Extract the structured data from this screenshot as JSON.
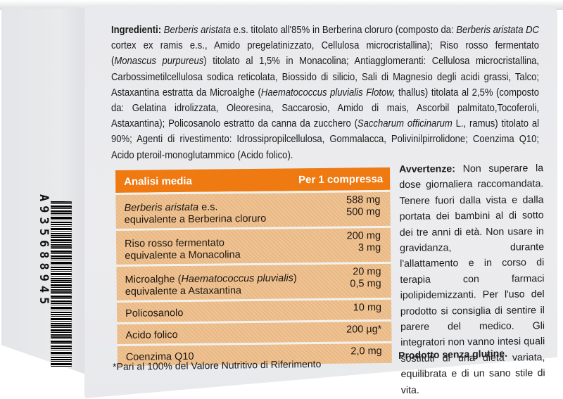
{
  "product_label": {
    "ingredients": {
      "heading": "Ingredienti:",
      "segments": [
        {
          "text": " ",
          "style": "normal"
        },
        {
          "text": "Berberis aristata",
          "style": "italic"
        },
        {
          "text": " e.s. titolato all'85% in Berberina cloruro (composto da: ",
          "style": "normal"
        },
        {
          "text": "Berberis aristata DC",
          "style": "italic"
        },
        {
          "text": " cortex ex ramis e.s., Amido pregelatinizzato, Cellulosa microcristallina); Riso rosso fermentato (",
          "style": "normal"
        },
        {
          "text": "Monascus purpureus",
          "style": "italic"
        },
        {
          "text": ") titolato al 1,5% in Monacolina; Antiagglomeranti: Cellulosa microcristallina, Carbossimetilcellulosa sodica reticolata, Biossido di silicio, Sali di Magnesio degli acidi grassi, Talco; Astaxantina estratta da Microalghe (",
          "style": "normal"
        },
        {
          "text": "Haematococcus pluvialis Flotow,",
          "style": "italic"
        },
        {
          "text": " thallus) titolata al 2,5% (composto da: Gelatina idrolizzata, Oleoresina, Saccarosio, Amido di mais, Ascorbil palmitato,Tocoferoli, Astaxantina); Policosanolo estratto da canna da zucchero (",
          "style": "normal"
        },
        {
          "text": "Saccharum officinarum",
          "style": "italic"
        },
        {
          "text": " L., ramus) titolato al 90%; Agenti di rivestimento: Idrossipropilcellulosa, Gommalacca, Polivinilpirrolidone; Coenzima Q10; Acido pteroil-monoglutammico (Acido folico).",
          "style": "normal"
        }
      ]
    },
    "analysis_table": {
      "header": {
        "label": "Analisi media",
        "value": "Per 1 compressa"
      },
      "rows": [
        {
          "line1_italic": "Berberis aristata",
          "line1_rest": " e.s.",
          "line2": "equivalente a Berberina cloruro",
          "value1": "588 mg",
          "value2": "500 mg"
        },
        {
          "line1_italic": "",
          "line1_rest": "Riso rosso fermentato",
          "line2": "equivalente a Monacolina",
          "value1": "200 mg",
          "value2": "3 mg"
        },
        {
          "line1_pre": "Microalghe (",
          "line1_italic": "Haematococcus pluvialis",
          "line1_rest": ")",
          "line2": "equivalente a Astaxantina",
          "value1": "20 mg",
          "value2": "0,5 mg"
        },
        {
          "label": "Policosanolo",
          "value": "10 mg"
        },
        {
          "label": "Acido folico",
          "value": "200 µg*"
        },
        {
          "label": "Coenzima Q10",
          "value": "2,0 mg"
        }
      ],
      "footnote": "*Pari al 100% del Valore Nutritivo di Riferimento"
    },
    "warnings": {
      "heading": "Avvertenze:",
      "text": " Non superare la dose giornaliera raccomandata. Tenere fuori dalla vista e dalla portata dei bambini al di sotto dei tre anni di età. Non usare in gravidanza, durante l'allattamento e in corso di terapia con farmaci ipolipidemizzanti. Per l'uso del prodotto si consiglia di sentire il parere del medico. Gli integratori non vanno intesi quali sostituti di una dieta variata, equilibrata e di un sano stile di vita."
    },
    "gluten_free": "Prodotto senza glutine.",
    "pharma_code": "A935688945"
  },
  "colors": {
    "table_header": "#ef7a12",
    "table_row": "#efbf8b",
    "box_surface": "#ebecee"
  }
}
